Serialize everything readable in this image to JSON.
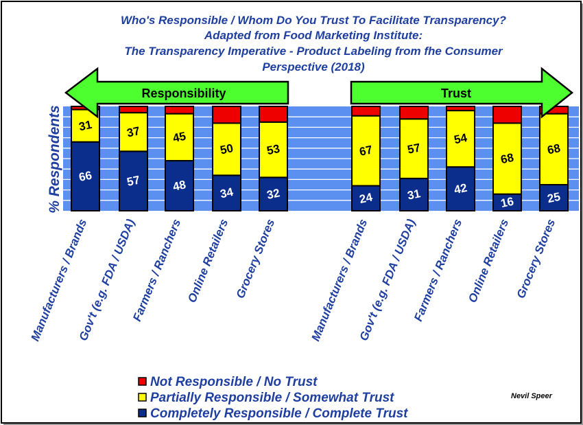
{
  "chart_data": {
    "type": "bar",
    "stacked": true,
    "title_lines": [
      "Who's Responsible / Whom Do You Trust To Facilitate Transparency?",
      "Adapted from Food Marketing Institute:",
      "The Transparency Imperative - Product Labeling from fhe Consumer",
      "Perspective (2018)"
    ],
    "ylabel": "% Respondents",
    "ylim": [
      0,
      100
    ],
    "groups": [
      {
        "label": "Responsibility",
        "categories": [
          "Manufacturers / Brands",
          "Gov't (e.g. FDA / USDA)",
          "Farmers / Ranchers",
          "Online Retailers",
          "Grocery Stores"
        ],
        "series": [
          {
            "name": "Completely Responsible / Complete Trust",
            "values": [
              66,
              57,
              48,
              34,
              32
            ]
          },
          {
            "name": "Partially Responsible / Somewhat Trust",
            "values": [
              31,
              37,
              45,
              50,
              53
            ]
          },
          {
            "name": "Not Responsible / No Trust",
            "values": [
              3,
              6,
              7,
              16,
              15
            ]
          }
        ]
      },
      {
        "label": "Trust",
        "categories": [
          "Manufacturers / Brands",
          "Gov't (e.g. FDA / USDA)",
          "Farmers / Ranchers",
          "Online Retailers",
          "Grocery Stores"
        ],
        "series": [
          {
            "name": "Completely Responsible / Complete Trust",
            "values": [
              24,
              31,
              42,
              16,
              25
            ]
          },
          {
            "name": "Partially Responsible / Somewhat Trust",
            "values": [
              67,
              57,
              54,
              68,
              68
            ]
          },
          {
            "name": "Not Responsible / No Trust",
            "values": [
              9,
              12,
              4,
              16,
              7
            ]
          }
        ]
      }
    ],
    "legend": [
      {
        "name": "Not Responsible / No Trust",
        "color": "#ee0000"
      },
      {
        "name": "Partially Responsible / Somewhat Trust",
        "color": "#ffff00"
      },
      {
        "name": "Completely Responsible / Complete Trust",
        "color": "#0b2e8c"
      }
    ],
    "legend_position": "bottom-left",
    "grid": true,
    "colors": {
      "complete": "#0b2e8c",
      "partial": "#ffff00",
      "none": "#ee0000",
      "plot_bg": "#5b8ff0",
      "arrow_fill": "#4dff2e",
      "text_blue": "#1f3fa0"
    }
  },
  "credit": "Nevil Speer"
}
